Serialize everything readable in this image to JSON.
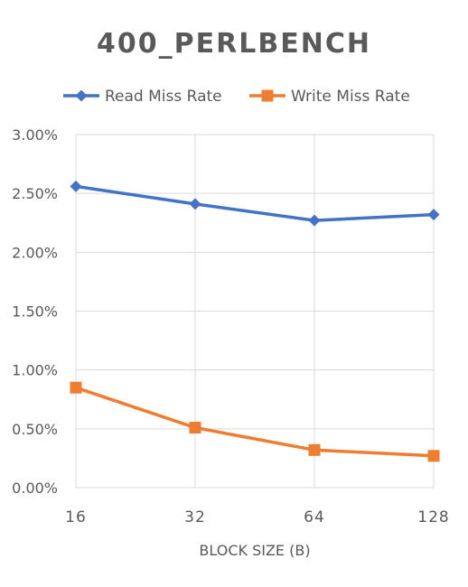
{
  "chart_data": {
    "type": "line",
    "title": "400_PERLBENCH",
    "xlabel": "BLOCK SIZE (B)",
    "ylabel": "",
    "categories": [
      "16",
      "32",
      "64",
      "128"
    ],
    "y_ticks": [
      "0.00%",
      "0.50%",
      "1.00%",
      "1.50%",
      "2.00%",
      "2.50%",
      "3.00%"
    ],
    "ylim": [
      0,
      3
    ],
    "grid": true,
    "legend_position": "top",
    "series": [
      {
        "name": "Read Miss Rate",
        "values": [
          2.56,
          2.41,
          2.27,
          2.32
        ],
        "color": "#4472c4",
        "marker": "diamond"
      },
      {
        "name": "Write Miss Rate",
        "values": [
          0.85,
          0.51,
          0.32,
          0.27
        ],
        "color": "#ed7d31",
        "marker": "square"
      }
    ]
  }
}
